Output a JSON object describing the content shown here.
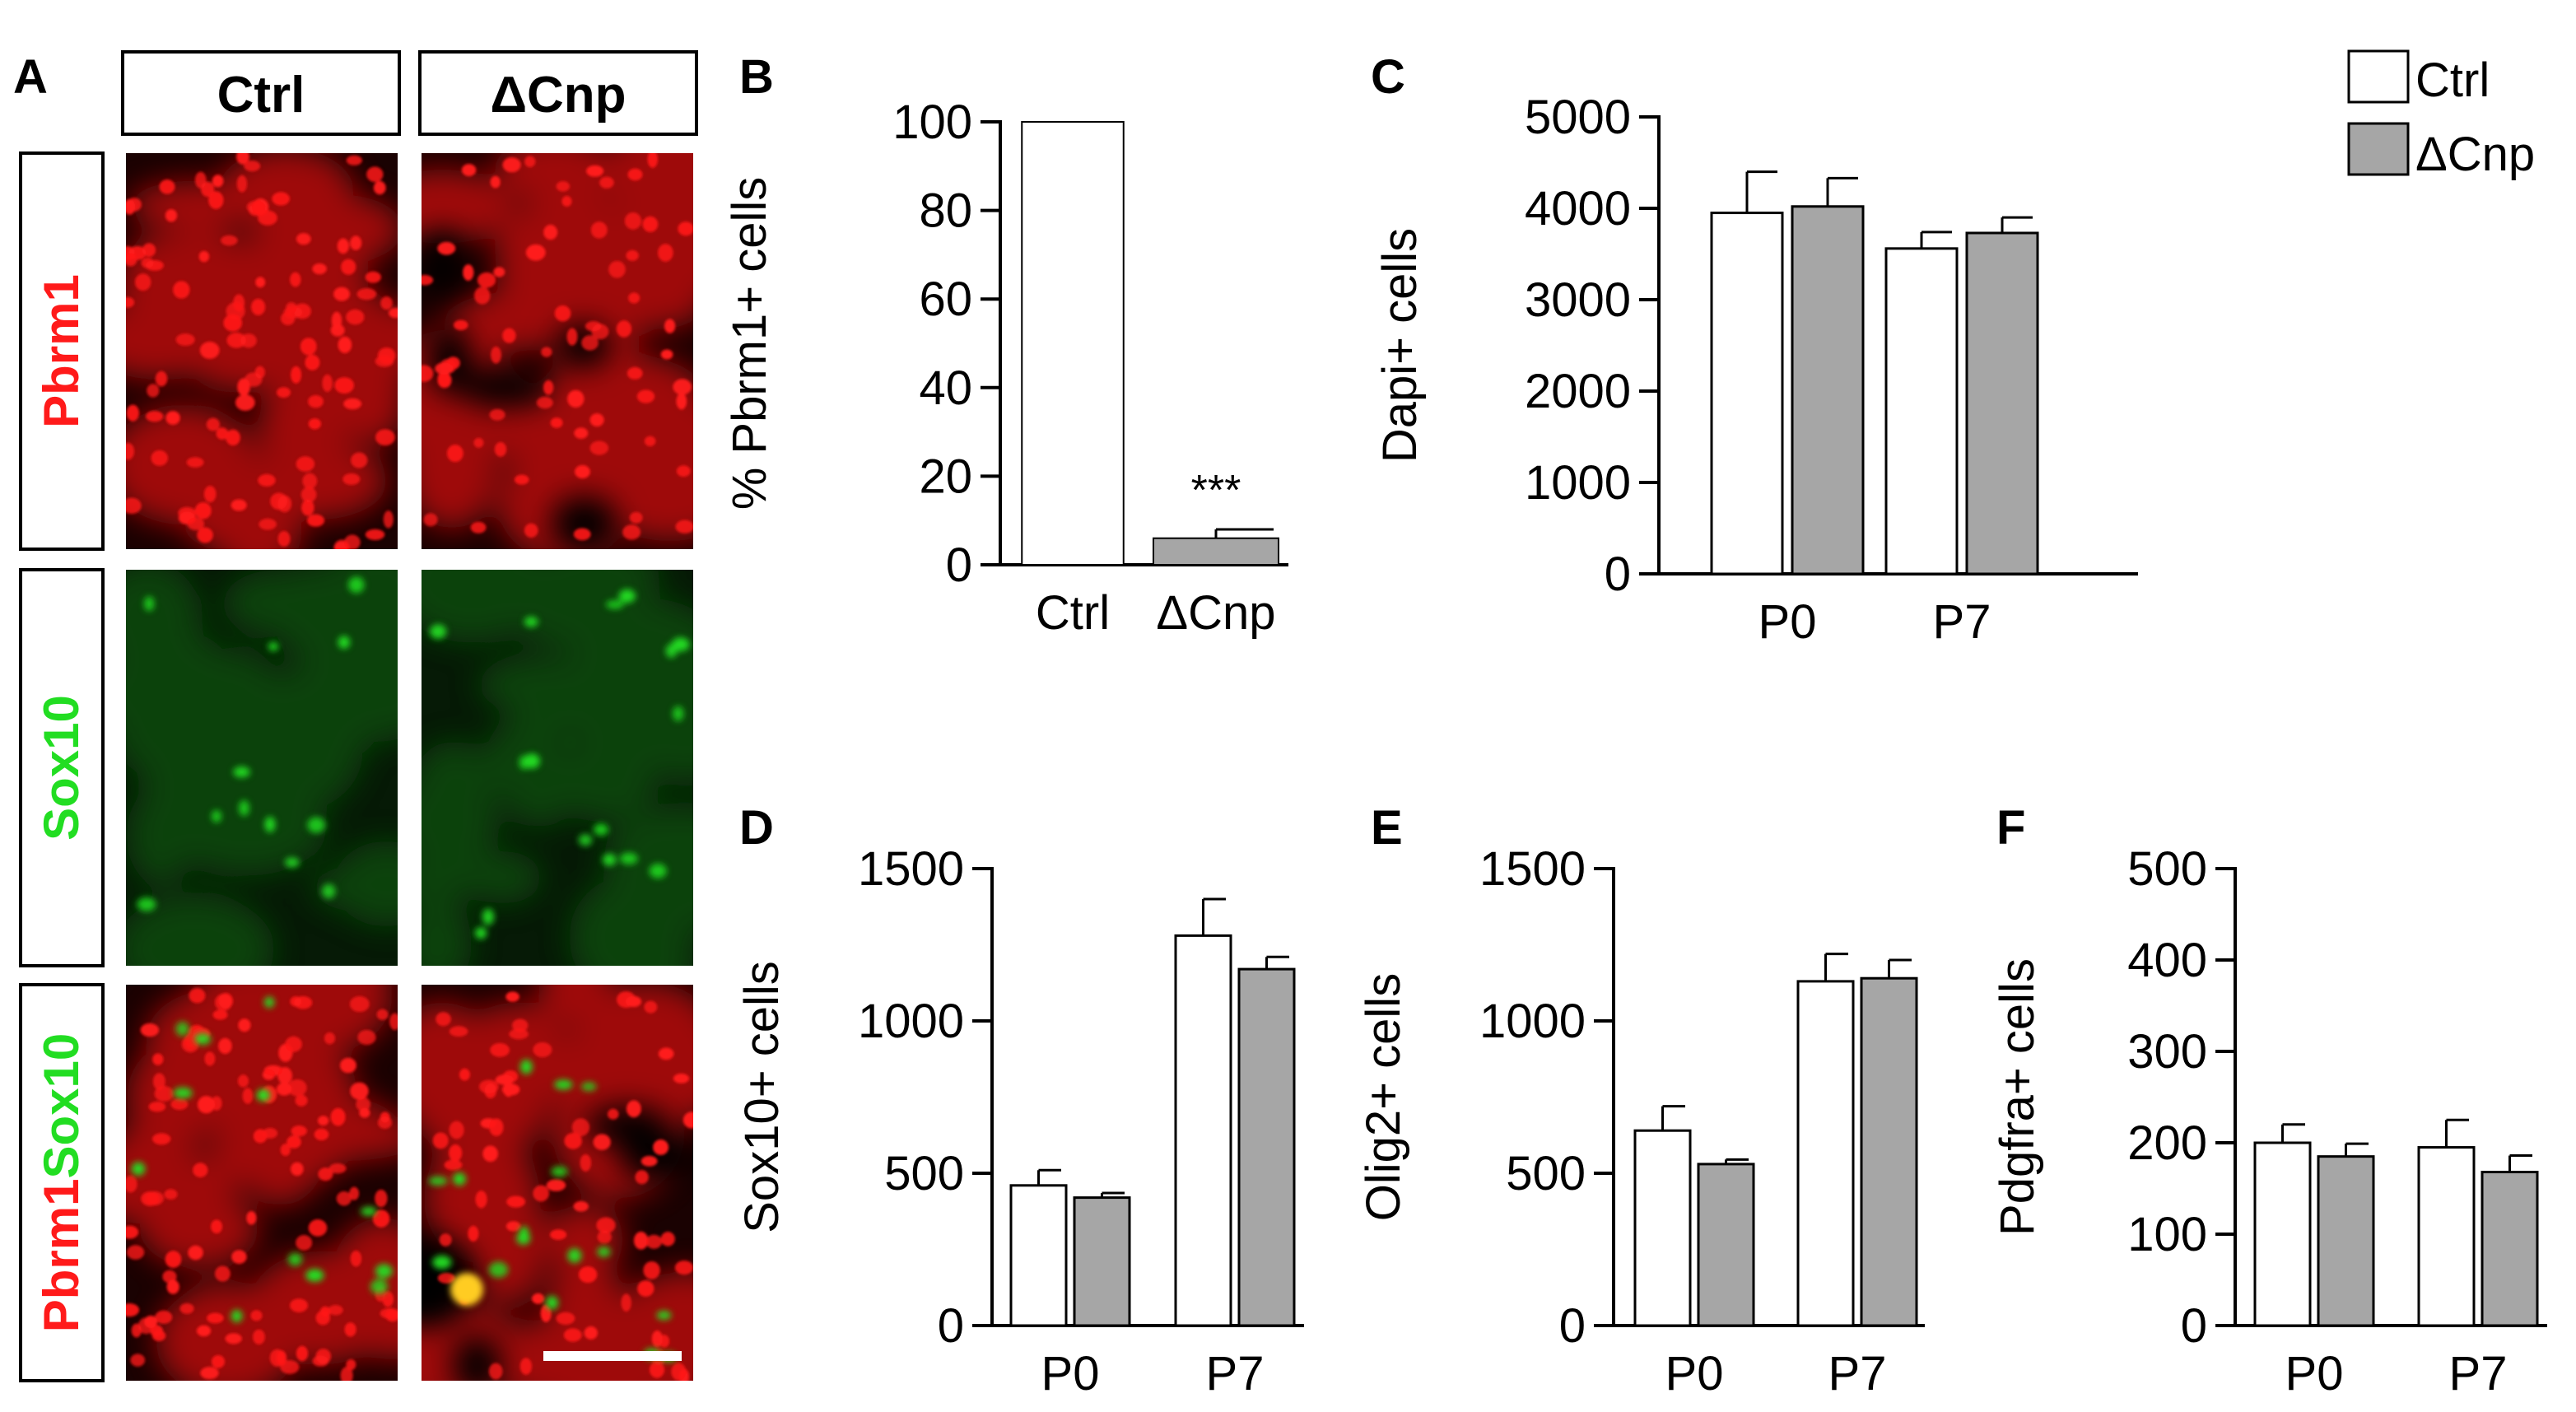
{
  "colors": {
    "ctrl": "#ffffff",
    "cnp": "#a6a6a6",
    "red": "#ff1a1a",
    "green": "#22dd22",
    "tissue_red": "#c01010",
    "tissue_green": "#0f4a10"
  },
  "panel_a": {
    "letter": "A",
    "columns": [
      "Ctrl",
      "ΔCnp"
    ],
    "rows": [
      {
        "name": "pbrm1",
        "parts": [
          {
            "text": "Pbrm1",
            "color": "red"
          }
        ]
      },
      {
        "name": "sox10",
        "parts": [
          {
            "text": "Sox10",
            "color": "green"
          }
        ]
      },
      {
        "name": "merge",
        "parts": [
          {
            "text": "Pbrm1",
            "color": "red"
          },
          {
            "text": "Sox10",
            "color": "green"
          }
        ]
      }
    ]
  },
  "legend": {
    "entries": [
      {
        "label": "Ctrl",
        "key": "ctrl"
      },
      {
        "label": "ΔCnp",
        "key": "cnp"
      }
    ]
  },
  "chart_data": [
    {
      "id": "B",
      "letter": "B",
      "type": "bar",
      "ylabel": "% Pbrm1+ cells",
      "ylim": [
        0,
        100
      ],
      "yticks": [
        0,
        20,
        40,
        60,
        80,
        100
      ],
      "categories": [
        "Ctrl",
        "ΔCnp"
      ],
      "values": [
        100,
        6
      ],
      "errors": [
        0,
        2
      ],
      "annotation": "***"
    },
    {
      "id": "C",
      "letter": "C",
      "type": "bar",
      "ylabel": "Dapi+ cells",
      "ylim": [
        0,
        5000
      ],
      "yticks": [
        0,
        1000,
        2000,
        3000,
        4000,
        5000
      ],
      "categories": [
        "P0",
        "P7"
      ],
      "series": [
        {
          "name": "Ctrl",
          "values": [
            3950,
            3560
          ],
          "errors": [
            450,
            180
          ]
        },
        {
          "name": "ΔCnp",
          "values": [
            4020,
            3730
          ],
          "errors": [
            310,
            170
          ]
        }
      ]
    },
    {
      "id": "D",
      "letter": "D",
      "type": "bar",
      "ylabel": "Sox10+ cells",
      "ylim": [
        0,
        1500
      ],
      "yticks": [
        0,
        500,
        1000,
        1500
      ],
      "categories": [
        "P0",
        "P7"
      ],
      "series": [
        {
          "name": "Ctrl",
          "values": [
            460,
            1280
          ],
          "errors": [
            50,
            120
          ]
        },
        {
          "name": "ΔCnp",
          "values": [
            420,
            1170
          ],
          "errors": [
            15,
            40
          ]
        }
      ]
    },
    {
      "id": "E",
      "letter": "E",
      "type": "bar",
      "ylabel": "Olig2+ cells",
      "ylim": [
        0,
        1500
      ],
      "yticks": [
        0,
        500,
        1000,
        1500
      ],
      "categories": [
        "P0",
        "P7"
      ],
      "series": [
        {
          "name": "Ctrl",
          "values": [
            640,
            1130
          ],
          "errors": [
            80,
            90
          ]
        },
        {
          "name": "ΔCnp",
          "values": [
            530,
            1140
          ],
          "errors": [
            15,
            60
          ]
        }
      ]
    },
    {
      "id": "F",
      "letter": "F",
      "type": "bar",
      "ylabel": "Pdgfra+ cells",
      "ylim": [
        0,
        500
      ],
      "yticks": [
        0,
        100,
        200,
        300,
        400,
        500
      ],
      "categories": [
        "P0",
        "P7"
      ],
      "series": [
        {
          "name": "Ctrl",
          "values": [
            200,
            195
          ],
          "errors": [
            20,
            30
          ]
        },
        {
          "name": "ΔCnp",
          "values": [
            185,
            168
          ],
          "errors": [
            14,
            18
          ]
        }
      ]
    }
  ]
}
